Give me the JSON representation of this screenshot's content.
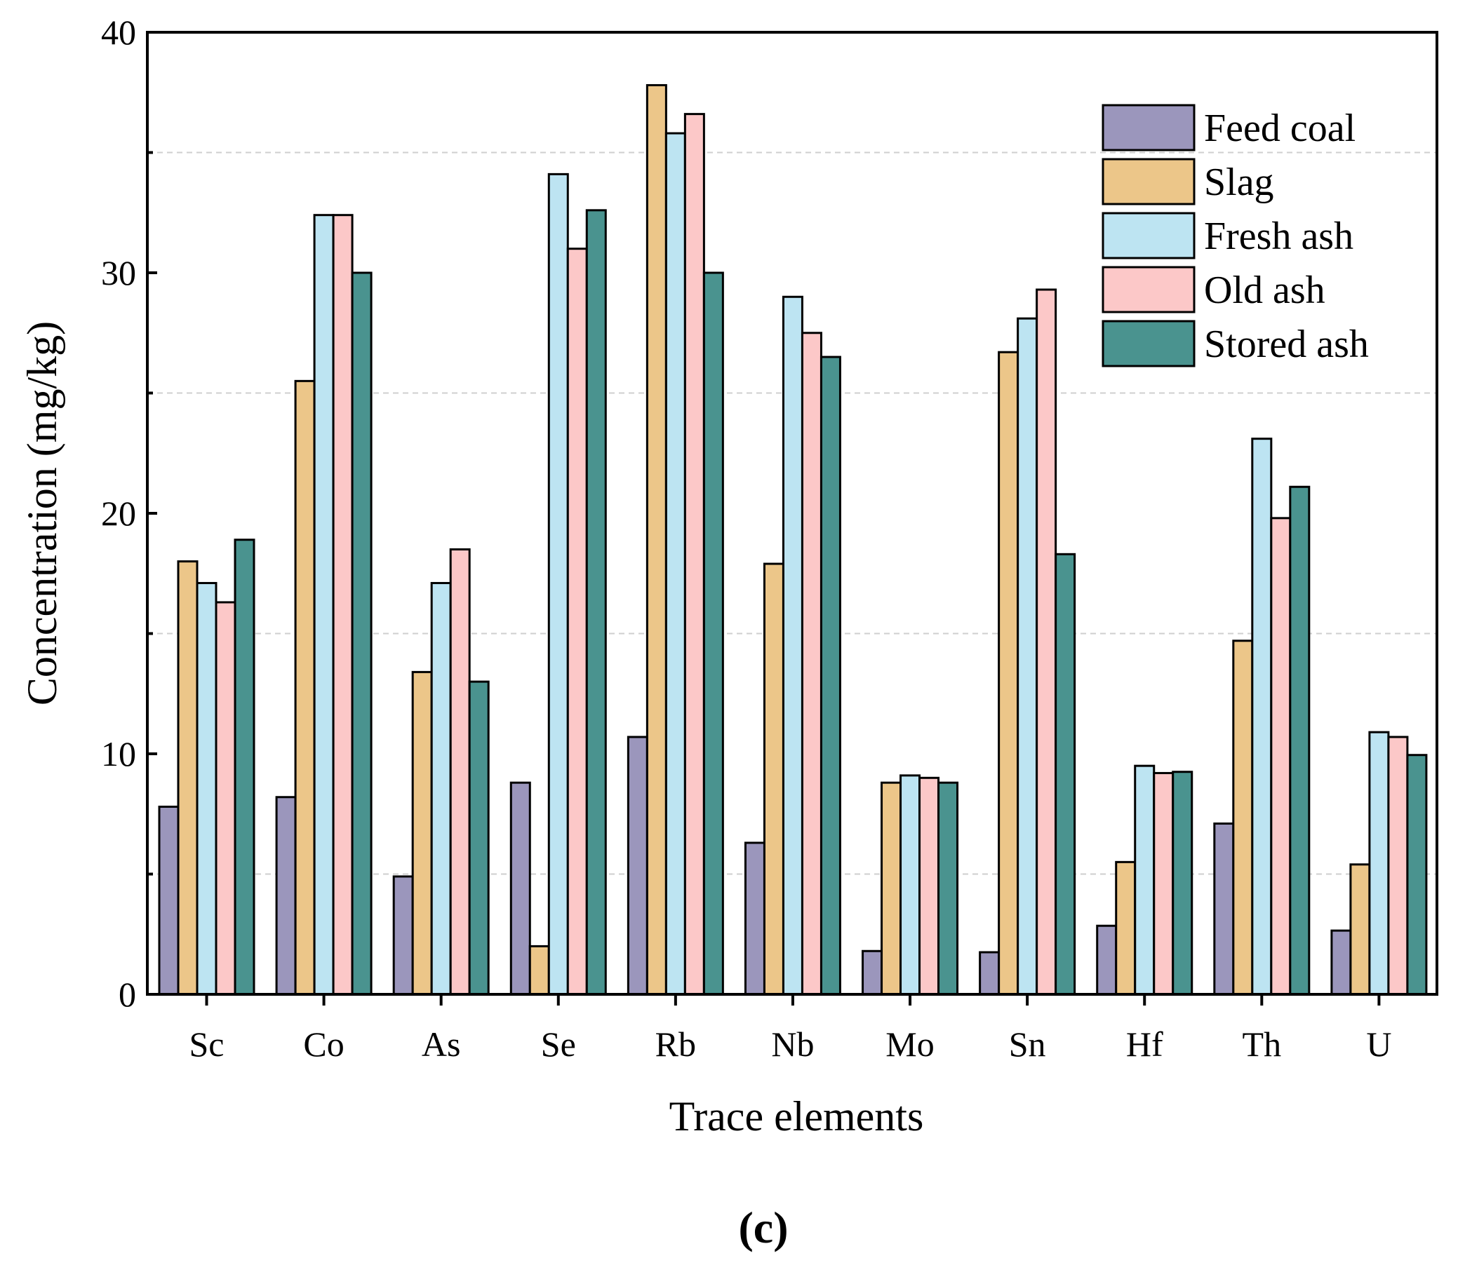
{
  "chart_data": {
    "type": "bar",
    "categories": [
      "Sc",
      "Co",
      "As",
      "Se",
      "Rb",
      "Nb",
      "Mo",
      "Sn",
      "Hf",
      "Th",
      "U"
    ],
    "series": [
      {
        "name": "Feed coal",
        "color": "#9b96bc",
        "values": [
          7.8,
          8.2,
          4.9,
          8.8,
          10.7,
          6.3,
          1.8,
          1.75,
          2.85,
          7.1,
          2.65
        ]
      },
      {
        "name": "Slag",
        "color": "#ecc689",
        "values": [
          18.0,
          25.5,
          13.4,
          2.0,
          37.8,
          17.9,
          8.8,
          26.7,
          5.5,
          14.7,
          5.4
        ]
      },
      {
        "name": "Fresh ash",
        "color": "#bde4f2",
        "values": [
          17.1,
          32.4,
          17.1,
          34.1,
          35.8,
          29.0,
          9.1,
          28.1,
          9.5,
          23.1,
          10.9
        ]
      },
      {
        "name": "Old ash",
        "color": "#fcc8c8",
        "values": [
          16.3,
          32.4,
          18.5,
          31.0,
          36.6,
          27.5,
          9.0,
          29.3,
          9.2,
          19.8,
          10.7
        ]
      },
      {
        "name": "Stored ash",
        "color": "#4a938f",
        "values": [
          18.9,
          30.0,
          13.0,
          32.6,
          30.0,
          26.5,
          8.8,
          18.3,
          9.25,
          21.1,
          9.95
        ]
      }
    ],
    "title": "",
    "xlabel": "Trace elements",
    "ylabel": "Concentration (mg/kg)",
    "ylim": [
      0,
      40
    ],
    "yticks": [
      0,
      10,
      20,
      30,
      40
    ],
    "grid": true,
    "legend_position": "top-right",
    "panel_label": "(c)"
  }
}
